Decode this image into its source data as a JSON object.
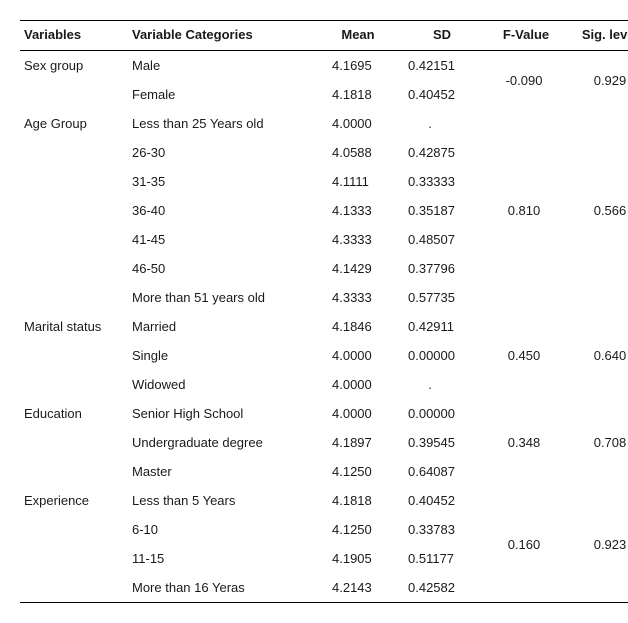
{
  "columns": [
    "Variables",
    "Variable Categories",
    "Mean",
    "SD",
    "F-Value",
    "Sig. level"
  ],
  "groups": [
    {
      "variable": "Sex group",
      "fvalue": "-0.090",
      "sig": "0.929",
      "fvalue_rowspan": 2,
      "fvalue_start_index": 0,
      "rows": [
        {
          "cat": "Male",
          "mean": "4.1695",
          "sd": "0.42151"
        },
        {
          "cat": "Female",
          "mean": "4.1818",
          "sd": "0.40452"
        }
      ]
    },
    {
      "variable": "Age Group",
      "fvalue": "0.810",
      "sig": "0.566",
      "fvalue_rowspan": 1,
      "fvalue_start_index": 3,
      "blank_span_before": 3,
      "blank_span_after": 3,
      "rows": [
        {
          "cat": "Less than 25 Years old",
          "mean": "4.0000",
          "sd": "."
        },
        {
          "cat": "26-30",
          "mean": "4.0588",
          "sd": "0.42875"
        },
        {
          "cat": "31-35",
          "mean": "4.1111",
          "sd": "0.33333"
        },
        {
          "cat": "36-40",
          "mean": "4.1333",
          "sd": "0.35187"
        },
        {
          "cat": "41-45",
          "mean": "4.3333",
          "sd": "0.48507"
        },
        {
          "cat": "46-50",
          "mean": "4.1429",
          "sd": "0.37796"
        },
        {
          "cat": "More than 51 years old",
          "mean": "4.3333",
          "sd": "0.57735"
        }
      ]
    },
    {
      "variable": "Marital status",
      "fvalue": "0.450",
      "sig": "0.640",
      "fvalue_rowspan": 1,
      "fvalue_start_index": 1,
      "blank_span_before": 1,
      "blank_span_after": 1,
      "rows": [
        {
          "cat": "Married",
          "mean": "4.1846",
          "sd": "0.42911"
        },
        {
          "cat": "Single",
          "mean": "4.0000",
          "sd": "0.00000"
        },
        {
          "cat": "Widowed",
          "mean": "4.0000",
          "sd": "."
        }
      ]
    },
    {
      "variable": "Education",
      "fvalue": "0.348",
      "sig": "0.708",
      "fvalue_rowspan": 1,
      "fvalue_start_index": 1,
      "blank_span_before": 1,
      "blank_span_after": 1,
      "rows": [
        {
          "cat": "Senior High School",
          "mean": "4.0000",
          "sd": "0.00000"
        },
        {
          "cat": "Undergraduate degree",
          "mean": "4.1897",
          "sd": "0.39545"
        },
        {
          "cat": "Master",
          "mean": "4.1250",
          "sd": "0.64087"
        }
      ]
    },
    {
      "variable": "Experience",
      "fvalue": "0.160",
      "sig": "0.923",
      "fvalue_rowspan": 2,
      "fvalue_start_index": 1,
      "blank_span_before": 1,
      "blank_span_after": 1,
      "rows": [
        {
          "cat": "Less than 5 Years",
          "mean": "4.1818",
          "sd": "0.40452"
        },
        {
          "cat": "6-10",
          "mean": "4.1250",
          "sd": "0.33783"
        },
        {
          "cat": "11-15",
          "mean": "4.1905",
          "sd": "0.51177"
        },
        {
          "cat": "More than 16 Yeras",
          "mean": "4.2143",
          "sd": "0.42582"
        }
      ]
    }
  ]
}
